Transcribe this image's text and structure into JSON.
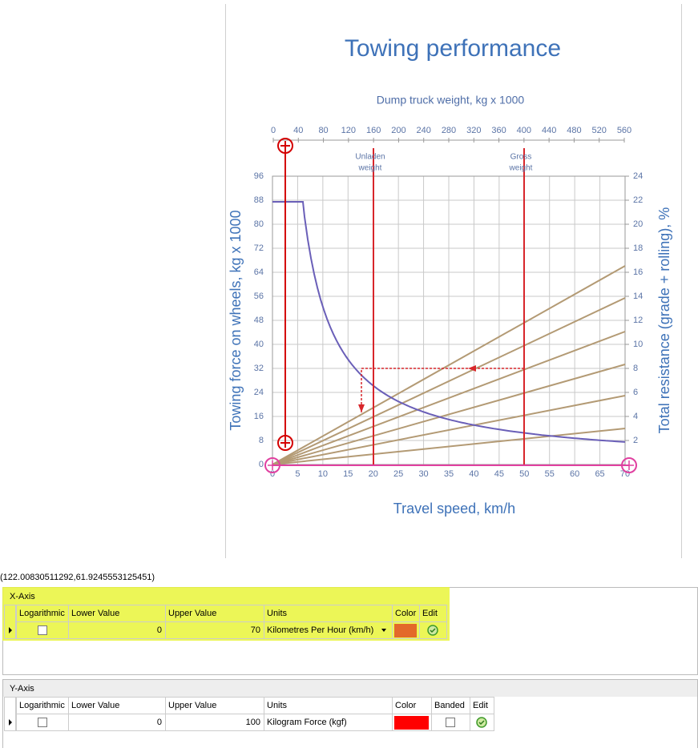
{
  "chart_image": {
    "title": "Towing performance",
    "top_axis_label": "Dump truck weight, kg x 1000",
    "top_ticks": [
      0,
      40,
      80,
      120,
      160,
      200,
      240,
      280,
      320,
      360,
      400,
      440,
      480,
      520,
      560
    ],
    "annotations": [
      {
        "lines": [
          "Unladen",
          "weight"
        ]
      },
      {
        "lines": [
          "Gross",
          "weight"
        ]
      }
    ],
    "left_axis_label": "Towing force on wheels, kg x 1000",
    "left_ticks": [
      0,
      8,
      16,
      24,
      32,
      40,
      48,
      56,
      64,
      72,
      80,
      88,
      96
    ],
    "right_axis_label": "Total resistance (grade + rolling), %",
    "right_ticks": [
      2,
      4,
      6,
      8,
      10,
      12,
      14,
      16,
      18,
      20,
      22,
      24
    ],
    "bottom_ticks": [
      0,
      5,
      10,
      15,
      20,
      25,
      30,
      35,
      40,
      45,
      50,
      55,
      60,
      65,
      70
    ],
    "bottom_axis_label": "Travel speed, km/h"
  },
  "coordinates": "(122.00830511292,61.9245553125451)",
  "x_axis_panel": {
    "title": "X-Axis",
    "columns": [
      "Logarithmic",
      "Lower Value",
      "Upper Value",
      "Units",
      "Color",
      "Edit"
    ],
    "row": {
      "logarithmic": false,
      "lower_value": 0,
      "upper_value": 70,
      "units": "Kilometres Per Hour (km/h)",
      "color": "#e3692a"
    }
  },
  "y_axis_panel": {
    "title": "Y-Axis",
    "columns": [
      "Logarithmic",
      "Lower Value",
      "Upper Value",
      "Units",
      "Color",
      "Banded",
      "Edit"
    ],
    "row": {
      "logarithmic": false,
      "lower_value": 0,
      "upper_value": 100,
      "units": "Kilogram Force (kgf)",
      "color": "#ff0000",
      "banded": false
    }
  }
}
